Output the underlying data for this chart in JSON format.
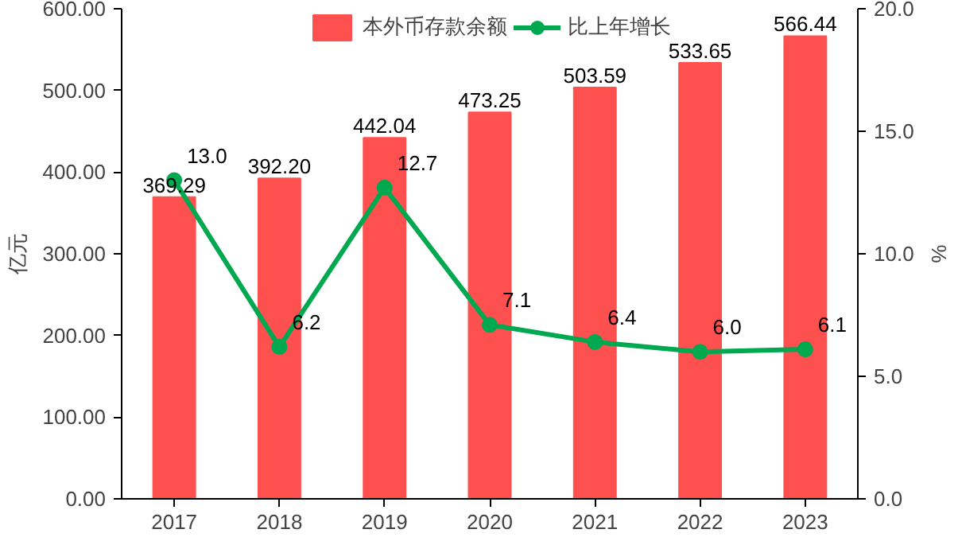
{
  "chart_data": {
    "type": "bar",
    "categories": [
      "2017",
      "2018",
      "2019",
      "2020",
      "2021",
      "2022",
      "2023"
    ],
    "ylabel": "亿元",
    "y2label": "%",
    "series": [
      {
        "name": "本外币存款余额",
        "color": "#ff5050",
        "values": [
          369.29,
          392.2,
          442.04,
          473.25,
          503.59,
          533.65,
          566.44
        ],
        "value_labels": [
          "369.29",
          "392.20",
          "442.04",
          "473.25",
          "503.59",
          "533.65",
          "566.44"
        ]
      },
      {
        "name": "比上年增长",
        "type": "line",
        "axis": "y2",
        "color": "#00a850",
        "marker": "circle",
        "values": [
          13.0,
          6.2,
          12.7,
          7.1,
          6.4,
          6.0,
          6.1
        ],
        "value_labels": [
          "13.0",
          "6.2",
          "12.7",
          "7.1",
          "6.4",
          "6.0",
          "6.1"
        ]
      }
    ],
    "ylim": [
      0,
      600
    ],
    "yticks": [
      {
        "value": 0,
        "label": "0.00"
      },
      {
        "value": 100,
        "label": "100.00"
      },
      {
        "value": 200,
        "label": "200.00"
      },
      {
        "value": 300,
        "label": "300.00"
      },
      {
        "value": 400,
        "label": "400.00"
      },
      {
        "value": 500,
        "label": "500.00"
      },
      {
        "value": 600,
        "label": "600.00"
      }
    ],
    "y2lim": [
      0,
      20
    ],
    "y2ticks": [
      {
        "value": 0,
        "label": "0.0"
      },
      {
        "value": 5,
        "label": "5.0"
      },
      {
        "value": 10,
        "label": "10.0"
      },
      {
        "value": 15,
        "label": "15.0"
      },
      {
        "value": 20,
        "label": "20.0"
      }
    ],
    "legend": "top",
    "grid": false
  }
}
